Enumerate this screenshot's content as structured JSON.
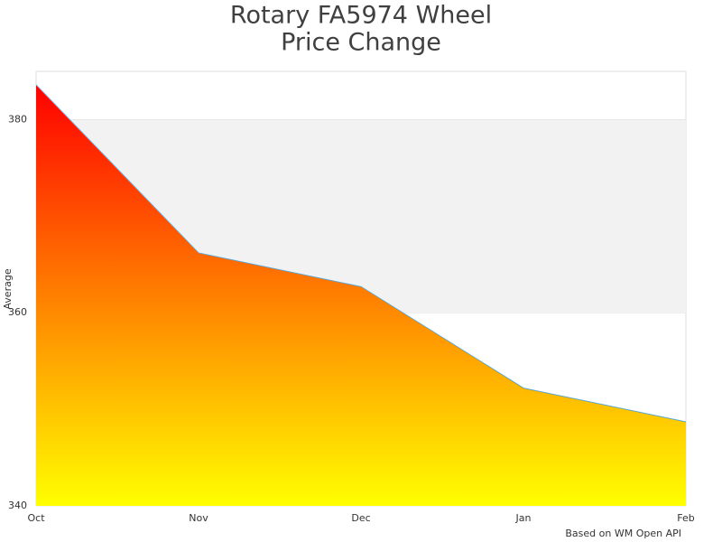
{
  "chart_data": {
    "type": "area",
    "title_lines": [
      "Rotary FA5974 Wheel",
      "Price Change"
    ],
    "y_label": "Average",
    "credit": "Based on WM Open API",
    "categories": [
      "Oct",
      "Nov",
      "Dec",
      "Jan",
      "Feb"
    ],
    "series": [
      {
        "name": "Average",
        "values": [
          383.6,
          366.2,
          362.7,
          352.2,
          348.7
        ],
        "line_color": "#5aa5d6",
        "gradient": [
          "#ff0000",
          "#ffff00"
        ]
      }
    ],
    "ylim": [
      340,
      385
    ],
    "yticks": [
      340,
      360,
      380
    ],
    "alternate_bands": true
  }
}
